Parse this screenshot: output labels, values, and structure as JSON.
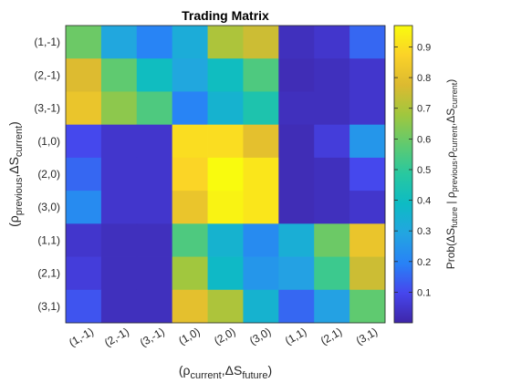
{
  "chart_data": {
    "type": "heatmap",
    "title": "Trading Matrix",
    "x_categories": [
      "(1,-1)",
      "(2,-1)",
      "(3,-1)",
      "(1,0)",
      "(2,0)",
      "(3,0)",
      "(1,1)",
      "(2,1)",
      "(3,1)"
    ],
    "y_categories": [
      "(1,-1)",
      "(2,-1)",
      "(3,-1)",
      "(1,0)",
      "(2,0)",
      "(3,0)",
      "(1,1)",
      "(2,1)",
      "(3,1)"
    ],
    "xlabel": {
      "base": "(ρ",
      "sub1": "current",
      "mid": ",ΔS",
      "sub2": "future",
      "end": ")"
    },
    "ylabel": {
      "base": "(ρ",
      "sub1": "previous",
      "mid": ",ΔS",
      "sub2": "current",
      "end": ")"
    },
    "colorbar_label": {
      "p1": "Prob(ΔS",
      "s1": "future",
      "p2": " | ρ",
      "s2": "previous",
      "p3": ",ρ",
      "s3": "current",
      "p4": ",ΔS",
      "s4": "current",
      "p5": ")"
    },
    "values": [
      [
        0.6,
        0.3,
        0.2,
        0.32,
        0.7,
        0.75,
        0.03,
        0.05,
        0.15
      ],
      [
        0.78,
        0.58,
        0.4,
        0.3,
        0.4,
        0.55,
        0.02,
        0.03,
        0.05
      ],
      [
        0.82,
        0.65,
        0.55,
        0.2,
        0.35,
        0.45,
        0.03,
        0.03,
        0.05
      ],
      [
        0.1,
        0.05,
        0.05,
        0.9,
        0.9,
        0.8,
        0.02,
        0.07,
        0.25
      ],
      [
        0.15,
        0.05,
        0.05,
        0.88,
        0.97,
        0.92,
        0.02,
        0.03,
        0.1
      ],
      [
        0.22,
        0.05,
        0.05,
        0.82,
        0.95,
        0.92,
        0.02,
        0.03,
        0.05
      ],
      [
        0.05,
        0.03,
        0.03,
        0.55,
        0.35,
        0.22,
        0.33,
        0.6,
        0.82
      ],
      [
        0.07,
        0.03,
        0.03,
        0.68,
        0.38,
        0.25,
        0.28,
        0.52,
        0.75
      ],
      [
        0.12,
        0.03,
        0.03,
        0.8,
        0.7,
        0.35,
        0.15,
        0.28,
        0.58
      ]
    ],
    "colorbar_range": [
      0.0,
      0.97
    ],
    "colorbar_ticks": [
      0.1,
      0.2,
      0.3,
      0.4,
      0.5,
      0.6,
      0.7,
      0.8,
      0.9
    ],
    "colormap": "parula"
  }
}
